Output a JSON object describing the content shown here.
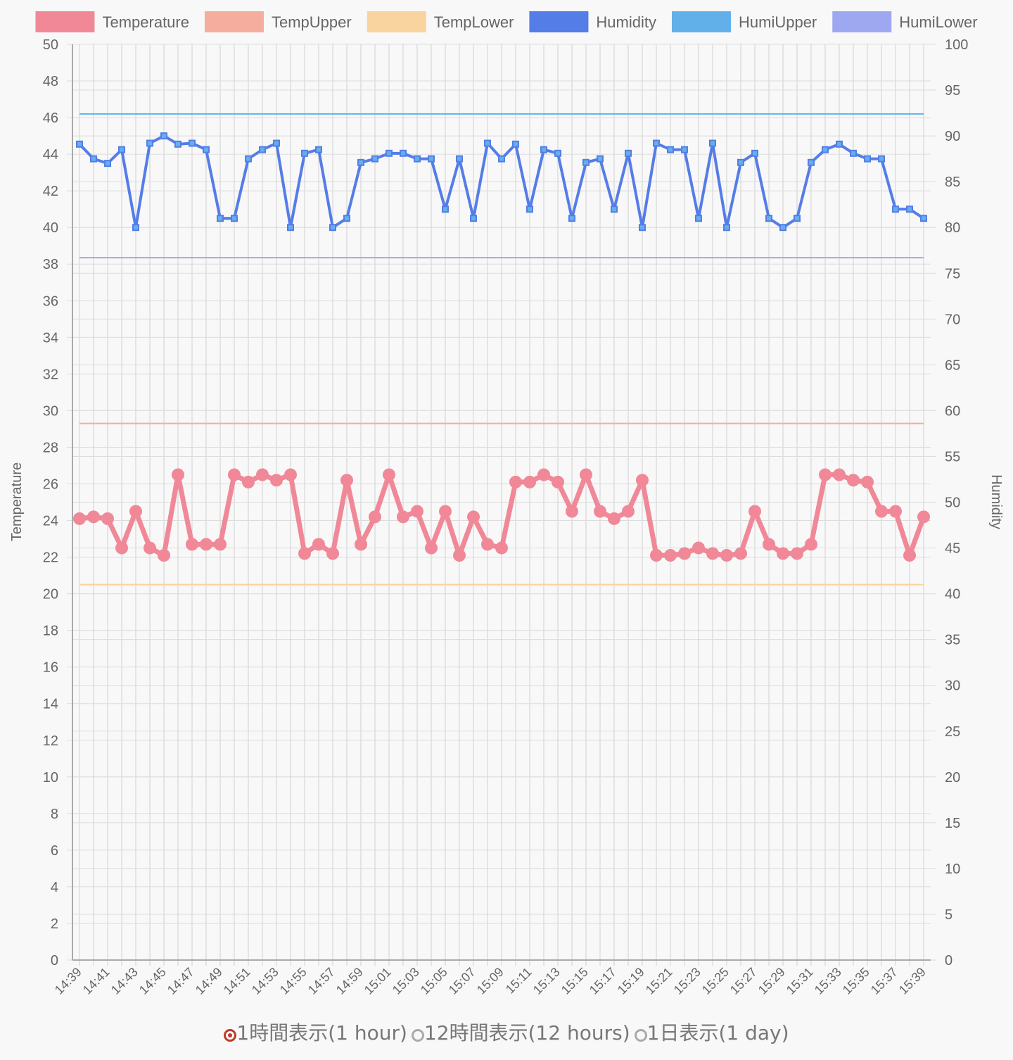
{
  "chart_data": {
    "type": "line",
    "categories": [
      "14:39",
      null,
      "14:41",
      null,
      "14:43",
      null,
      "14:45",
      null,
      "14:47",
      null,
      "14:49",
      null,
      "14:51",
      null,
      "14:53",
      null,
      "14:55",
      null,
      "14:57",
      null,
      "14:59",
      null,
      "15:01",
      null,
      "15:03",
      null,
      "15:05",
      null,
      "15:07",
      null,
      "15:09",
      null,
      "15:11",
      null,
      "15:13",
      null,
      "15:15",
      null,
      "15:17",
      null,
      "15:19",
      null,
      "15:21",
      null,
      "15:23",
      null,
      "15:25",
      null,
      "15:27",
      null,
      "15:29",
      null,
      "15:31",
      null,
      "15:33",
      null,
      "15:35",
      null,
      "15:37",
      null,
      "15:39"
    ],
    "series": [
      {
        "name": "Temperature",
        "color": "#f08898",
        "point_style": "circle",
        "values": [
          24.1,
          24.2,
          24.1,
          22.5,
          24.5,
          22.5,
          22.1,
          26.5,
          22.7,
          22.7,
          22.7,
          26.5,
          26.1,
          26.5,
          26.2,
          26.5,
          22.2,
          22.7,
          22.2,
          26.2,
          22.7,
          24.2,
          26.5,
          24.2,
          24.5,
          22.5,
          24.5,
          22.1,
          24.2,
          22.7,
          22.5,
          26.1,
          26.1,
          26.5,
          26.1,
          24.5,
          26.5,
          24.5,
          24.1,
          24.5,
          26.2,
          22.1,
          22.1,
          22.2,
          22.5,
          22.2,
          22.1,
          22.2,
          24.5,
          22.7,
          22.2,
          22.2,
          22.7,
          26.5,
          26.5,
          26.2,
          26.1,
          24.5,
          24.5,
          22.1,
          24.2
        ]
      },
      {
        "name": "TempUpper",
        "color": "#f5ad9e",
        "values": [
          29.3,
          29.3,
          29.3,
          29.3,
          29.3,
          29.3,
          29.3,
          29.3,
          29.3,
          29.3,
          29.3,
          29.3,
          29.3,
          29.3,
          29.3,
          29.3,
          29.3,
          29.3,
          29.3,
          29.3,
          29.3,
          29.3,
          29.3,
          29.3,
          29.3,
          29.3,
          29.3,
          29.3,
          29.3,
          29.3,
          29.3,
          29.3,
          29.3,
          29.3,
          29.3,
          29.3,
          29.3,
          29.3,
          29.3,
          29.3,
          29.3,
          29.3,
          29.3,
          29.3,
          29.3,
          29.3,
          29.3,
          29.3,
          29.3,
          29.3,
          29.3,
          29.3,
          29.3,
          29.3,
          29.3,
          29.3,
          29.3,
          29.3,
          29.3,
          29.3,
          29.3
        ]
      },
      {
        "name": "TempLower",
        "color": "#f9d49e",
        "values": [
          20.5,
          20.5,
          20.5,
          20.5,
          20.5,
          20.5,
          20.5,
          20.5,
          20.5,
          20.5,
          20.5,
          20.5,
          20.5,
          20.5,
          20.5,
          20.5,
          20.5,
          20.5,
          20.5,
          20.5,
          20.5,
          20.5,
          20.5,
          20.5,
          20.5,
          20.5,
          20.5,
          20.5,
          20.5,
          20.5,
          20.5,
          20.5,
          20.5,
          20.5,
          20.5,
          20.5,
          20.5,
          20.5,
          20.5,
          20.5,
          20.5,
          20.5,
          20.5,
          20.5,
          20.5,
          20.5,
          20.5,
          20.5,
          20.5,
          20.5,
          20.5,
          20.5,
          20.5,
          20.5,
          20.5,
          20.5,
          20.5,
          20.5,
          20.5,
          20.5,
          20.5
        ]
      },
      {
        "name": "Humidity",
        "color": "#557de8",
        "axis": "y2",
        "point_style": "rect",
        "values": [
          89.1,
          87.5,
          87.0,
          88.5,
          80,
          89.2,
          90,
          89.1,
          89.2,
          88.5,
          81,
          81,
          87.5,
          88.5,
          89.2,
          80,
          88.1,
          88.5,
          80,
          81,
          87.1,
          87.5,
          88.1,
          88.1,
          87.5,
          87.5,
          82,
          87.5,
          81,
          89.2,
          87.5,
          89.1,
          82,
          88.5,
          88.1,
          81,
          87.1,
          87.5,
          82,
          88.1,
          80,
          89.2,
          88.5,
          88.5,
          81,
          89.2,
          80,
          87.1,
          88.1,
          81,
          80,
          81,
          87.1,
          88.5,
          89.1,
          88.1,
          87.5,
          87.5,
          82,
          82,
          81
        ]
      },
      {
        "name": "HumiUpper",
        "color": "#62b0ea",
        "axis": "y2",
        "values": [
          92.4,
          92.4,
          92.4,
          92.4,
          92.4,
          92.4,
          92.4,
          92.4,
          92.4,
          92.4,
          92.4,
          92.4,
          92.4,
          92.4,
          92.4,
          92.4,
          92.4,
          92.4,
          92.4,
          92.4,
          92.4,
          92.4,
          92.4,
          92.4,
          92.4,
          92.4,
          92.4,
          92.4,
          92.4,
          92.4,
          92.4,
          92.4,
          92.4,
          92.4,
          92.4,
          92.4,
          92.4,
          92.4,
          92.4,
          92.4,
          92.4,
          92.4,
          92.4,
          92.4,
          92.4,
          92.4,
          92.4,
          92.4,
          92.4,
          92.4,
          92.4,
          92.4,
          92.4,
          92.4,
          92.4,
          92.4,
          92.4,
          92.4,
          92.4,
          92.4,
          92.4
        ]
      },
      {
        "name": "HumiLower",
        "color": "#9ea8f0",
        "axis": "y2",
        "values": [
          76.7,
          76.7,
          76.7,
          76.7,
          76.7,
          76.7,
          76.7,
          76.7,
          76.7,
          76.7,
          76.7,
          76.7,
          76.7,
          76.7,
          76.7,
          76.7,
          76.7,
          76.7,
          76.7,
          76.7,
          76.7,
          76.7,
          76.7,
          76.7,
          76.7,
          76.7,
          76.7,
          76.7,
          76.7,
          76.7,
          76.7,
          76.7,
          76.7,
          76.7,
          76.7,
          76.7,
          76.7,
          76.7,
          76.7,
          76.7,
          76.7,
          76.7,
          76.7,
          76.7,
          76.7,
          76.7,
          76.7,
          76.7,
          76.7,
          76.7,
          76.7,
          76.7,
          76.7,
          76.7,
          76.7,
          76.7,
          76.7,
          76.7,
          76.7,
          76.7,
          76.7
        ]
      }
    ],
    "y_label": "Temperature",
    "y2_label": "Humidity",
    "ylim": [
      0,
      50
    ],
    "yticks": [
      0,
      2,
      4,
      6,
      8,
      10,
      12,
      14,
      16,
      18,
      20,
      22,
      24,
      26,
      28,
      30,
      32,
      34,
      36,
      38,
      40,
      42,
      44,
      46,
      48,
      50
    ],
    "y2lim": [
      0,
      100
    ],
    "y2ticks": [
      0,
      5,
      10,
      15,
      20,
      25,
      30,
      35,
      40,
      45,
      50,
      55,
      60,
      65,
      70,
      75,
      80,
      85,
      90,
      95,
      100
    ],
    "grid": true,
    "legend": "top"
  },
  "range_options": {
    "options": [
      "1時間表示(1 hour)",
      "12時間表示(12 hours)",
      "1日表示(1 day)"
    ],
    "selected": 0
  }
}
